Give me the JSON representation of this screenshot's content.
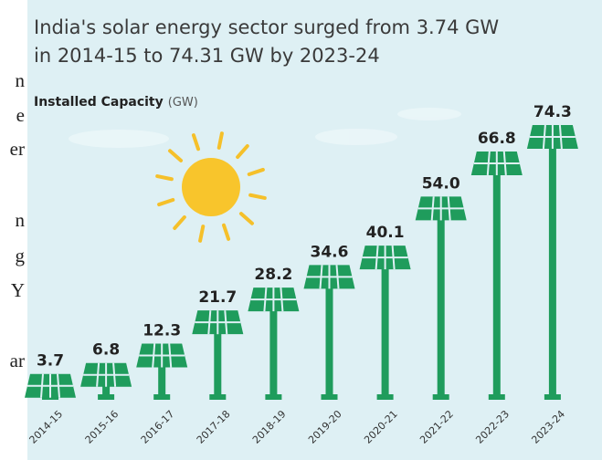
{
  "page_fragments": [
    "n",
    "e",
    "er",
    "n",
    "g",
    "Y",
    "ar"
  ],
  "chart_data": {
    "type": "solar-bar",
    "title": "India's solar energy sector surged from 3.74 GW",
    "title_line2": "in 2014-15 to 74.31 GW by 2023-24",
    "y_label": "Installed Capacity",
    "y_unit": "(GW)",
    "categories": [
      "2014-15",
      "2015-16",
      "2016-17",
      "2017-18",
      "2018-19",
      "2019-20",
      "2020-21",
      "2021-22",
      "2022-23",
      "2023-24"
    ],
    "values": [
      3.7,
      6.8,
      12.3,
      21.7,
      28.2,
      34.6,
      40.1,
      54.0,
      66.8,
      74.3
    ],
    "value_labels": [
      "3.7",
      "6.8",
      "12.3",
      "21.7",
      "28.2",
      "34.6",
      "40.1",
      "54.0",
      "66.8",
      "74.3"
    ],
    "color": "#1f9c5c"
  }
}
